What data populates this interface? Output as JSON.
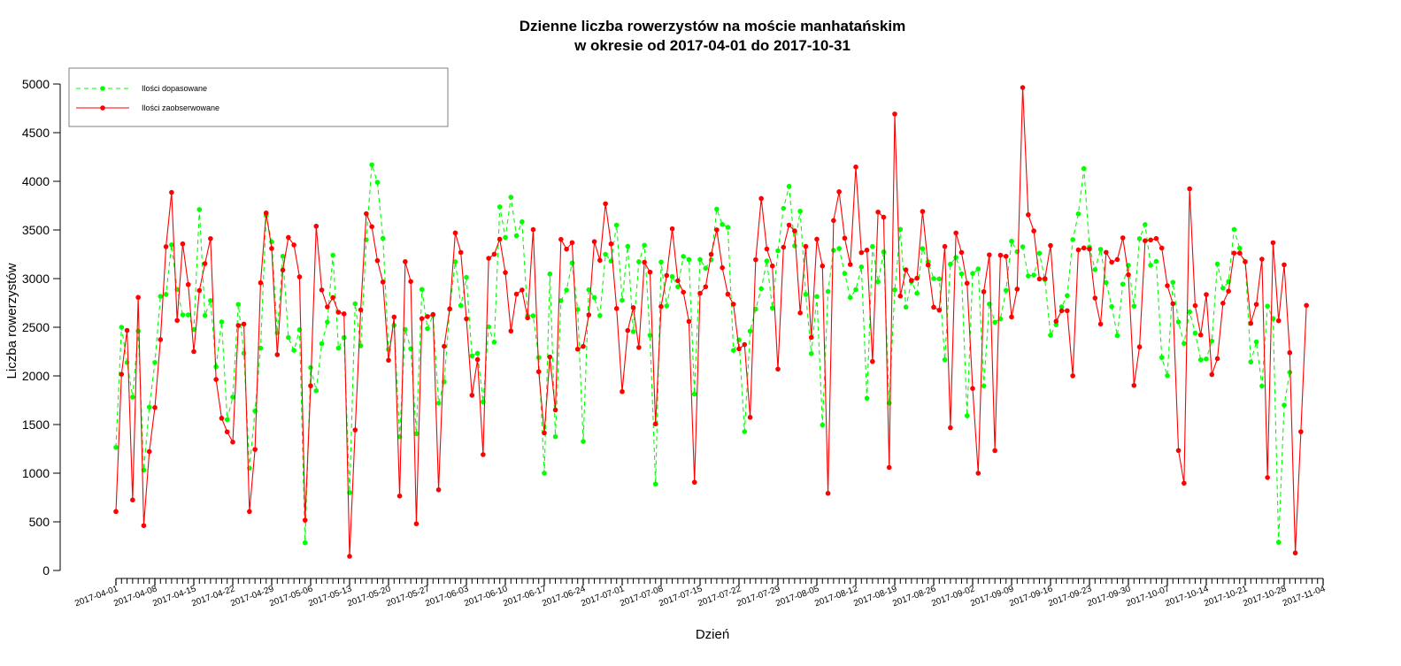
{
  "chart_data": {
    "type": "line",
    "title_line1": "Dzienne liczba rowerzystów na moście manhatańskim",
    "title_line2": "w okresie od 2017-04-01 do 2017-10-31",
    "xlabel": "Dzień",
    "ylabel": "Liczba rowerzystów",
    "ylim": [
      0,
      5000
    ],
    "yticks": [
      0,
      500,
      1000,
      1500,
      2000,
      2500,
      3000,
      3500,
      4000,
      4500,
      5000
    ],
    "x_start": "2017-04-01",
    "x_end": "2017-11-04",
    "x_tick_labels": [
      "2017-04-01",
      "2017-04-08",
      "2017-04-15",
      "2017-04-22",
      "2017-04-29",
      "2017-05-06",
      "2017-05-13",
      "2017-05-20",
      "2017-05-27",
      "2017-06-03",
      "2017-06-10",
      "2017-06-17",
      "2017-06-24",
      "2017-07-01",
      "2017-07-08",
      "2017-07-15",
      "2017-07-22",
      "2017-07-29",
      "2017-08-05",
      "2017-08-12",
      "2017-08-19",
      "2017-08-26",
      "2017-09-02",
      "2017-09-09",
      "2017-09-16",
      "2017-09-23",
      "2017-09-30",
      "2017-10-07",
      "2017-10-14",
      "2017-10-21",
      "2017-10-28",
      "2017-11-04"
    ],
    "legend_position": "top-left",
    "colors": {
      "fitted": "#00ff00",
      "observed": "#ff0000"
    },
    "series": [
      {
        "name": "Ilości dopasowane",
        "style": "dashed",
        "values": [
          1265,
          2500,
          2137,
          1782,
          2460,
          1032,
          1679,
          2138,
          2818,
          2838,
          3347,
          2888,
          2627,
          2627,
          2478,
          3710,
          2621,
          2774,
          2094,
          2555,
          1551,
          1782,
          2735,
          2233,
          1051,
          1640,
          2286,
          3651,
          3378,
          2443,
          3230,
          2394,
          2263,
          2474,
          285,
          2085,
          1847,
          2331,
          2553,
          3241,
          2285,
          2394,
          801,
          2742,
          2310,
          3399,
          4170,
          3990,
          3414,
          2272,
          2520,
          1375,
          2478,
          2279,
          1406,
          2889,
          2486,
          2626,
          1720,
          1939,
          2686,
          3173,
          2723,
          3013,
          2206,
          2232,
          1733,
          2504,
          2347,
          3737,
          3423,
          3836,
          3441,
          3584,
          2618,
          2618,
          2189,
          1000,
          3048,
          1375,
          2773,
          2882,
          3161,
          2683,
          1326,
          2885,
          2805,
          2620,
          3250,
          3181,
          3550,
          2777,
          3332,
          2456,
          3173,
          3343,
          2418,
          889,
          3170,
          2719,
          3021,
          2916,
          3228,
          3196,
          1813,
          3196,
          3107,
          3193,
          3714,
          3557,
          3527,
          2262,
          2370,
          1427,
          2460,
          2687,
          2896,
          3181,
          2697,
          3286,
          3722,
          3948,
          3337,
          3693,
          2839,
          2229,
          2816,
          1495,
          2867,
          3291,
          3310,
          3053,
          2805,
          2886,
          3120,
          1769,
          3330,
          2967,
          3274,
          1721,
          2884,
          3506,
          2707,
          2969,
          2849,
          3309,
          3173,
          3000,
          2997,
          2166,
          3148,
          3217,
          3050,
          1590,
          3053,
          3099,
          1897,
          2738,
          2551,
          2586,
          2879,
          3384,
          3277,
          3327,
          3027,
          3037,
          3261,
          2989,
          2418,
          2526,
          2710,
          2825,
          3401,
          3666,
          4131,
          3325,
          3092,
          3301,
          2960,
          2712,
          2414,
          2943,
          3137,
          2717,
          3411,
          3555,
          3137,
          3178,
          2189,
          2003,
          2962,
          2554,
          2333,
          2658,
          2440,
          2166,
          2174,
          2358,
          3150,
          2902,
          2969,
          3505,
          3313,
          3176,
          2143,
          2350,
          1896,
          2717,
          2589,
          290,
          1700,
          2036
        ]
      },
      {
        "name": "Ilości zaobserwowane",
        "style": "solid",
        "values": [
          606,
          2017,
          2468,
          725,
          2807,
          461,
          1222,
          1675,
          2373,
          3328,
          3886,
          2570,
          3357,
          2939,
          2250,
          2878,
          3154,
          3411,
          1963,
          1565,
          1425,
          1320,
          2518,
          2533,
          606,
          1244,
          2957,
          3674,
          3310,
          2218,
          3088,
          3423,
          3346,
          3018,
          517,
          1898,
          3539,
          2883,
          2709,
          2805,
          2654,
          2638,
          146,
          1444,
          2679,
          3667,
          3534,
          3185,
          2965,
          2161,
          2605,
          766,
          3174,
          2970,
          480,
          2589,
          2610,
          2631,
          829,
          2304,
          2689,
          3470,
          3269,
          2586,
          1801,
          2168,
          1191,
          3209,
          3251,
          3405,
          3062,
          2461,
          2841,
          2883,
          2596,
          3504,
          2043,
          1414,
          2194,
          1650,
          3403,
          3303,
          3370,
          2275,
          2303,
          2627,
          3380,
          3188,
          3769,
          3357,
          2693,
          1839,
          2467,
          2702,
          2292,
          3168,
          3067,
          1507,
          2713,
          3032,
          3512,
          2978,
          2861,
          2560,
          907,
          2849,
          2916,
          3249,
          3501,
          3112,
          2840,
          2737,
          2278,
          2322,
          1574,
          3194,
          3823,
          3304,
          3130,
          2070,
          3322,
          3550,
          3490,
          2647,
          3331,
          2396,
          3405,
          3130,
          793,
          3597,
          3893,
          3416,
          3145,
          4147,
          3267,
          3293,
          2148,
          3684,
          3631,
          1059,
          4692,
          2821,
          3090,
          2981,
          3004,
          3690,
          3140,
          2706,
          2676,
          3330,
          1467,
          3469,
          3269,
          2952,
          1871,
          1000,
          2865,
          3244,
          1232,
          3241,
          3229,
          2606,
          2892,
          4963,
          3656,
          3490,
          2996,
          3000,
          3340,
          2561,
          2670,
          2670,
          2001,
          3295,
          3315,
          3304,
          2800,
          2533,
          3270,
          3169,
          3196,
          3419,
          3040,
          1902,
          2298,
          3389,
          3397,
          3412,
          3314,
          2927,
          2742,
          1233,
          897,
          3923,
          2722,
          2421,
          2836,
          2014,
          2178,
          2747,
          2871,
          3262,
          3262,
          3172,
          2540,
          2735,
          3200,
          955,
          3369,
          2567,
          3142,
          2239,
          180,
          1426,
          2725
        ]
      }
    ]
  }
}
